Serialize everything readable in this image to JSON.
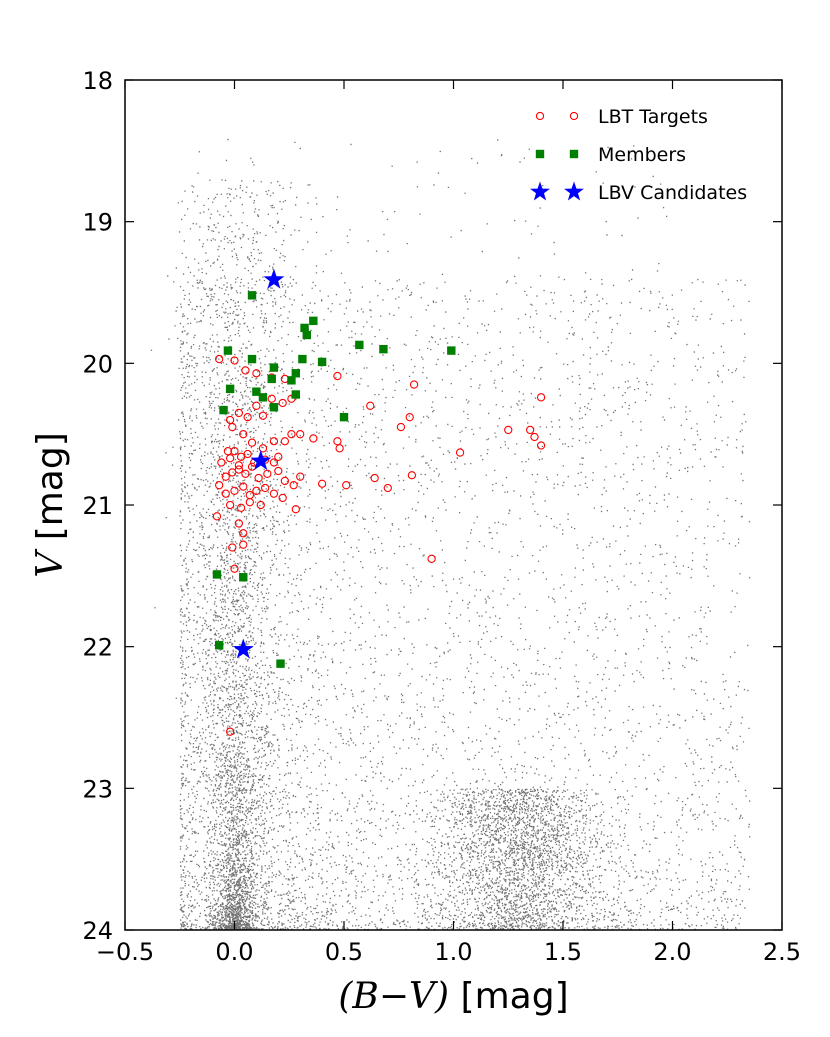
{
  "chart_data": {
    "type": "scatter",
    "xlabel": {
      "prefix": "(B−V)",
      "suffix": " [mag]"
    },
    "ylabel": {
      "prefix": "V",
      "suffix": " [mag]"
    },
    "xlim": [
      -0.5,
      2.5
    ],
    "ylim": [
      24,
      18
    ],
    "y_inverted": true,
    "x_ticks": [
      "−0.5",
      "0.0",
      "0.5",
      "1.0",
      "1.5",
      "2.0",
      "2.5"
    ],
    "x_tick_values": [
      -0.5,
      0.0,
      0.5,
      1.0,
      1.5,
      2.0,
      2.5
    ],
    "y_ticks": [
      "18",
      "19",
      "20",
      "21",
      "22",
      "23",
      "24"
    ],
    "y_tick_values": [
      18,
      19,
      20,
      21,
      22,
      23,
      24
    ],
    "grid": false,
    "legend": {
      "position": "top-right"
    },
    "series": [
      {
        "name": "LBT Targets",
        "marker": "open-circle",
        "color": "#ff0000",
        "points": [
          [
            -0.07,
            19.97
          ],
          [
            0.0,
            19.98
          ],
          [
            0.05,
            20.05
          ],
          [
            0.1,
            20.07
          ],
          [
            0.17,
            20.1
          ],
          [
            0.23,
            20.11
          ],
          [
            0.47,
            20.09
          ],
          [
            0.82,
            20.15
          ],
          [
            -0.05,
            20.33
          ],
          [
            -0.02,
            20.4
          ],
          [
            0.02,
            20.35
          ],
          [
            0.06,
            20.38
          ],
          [
            0.1,
            20.3
          ],
          [
            0.13,
            20.37
          ],
          [
            0.17,
            20.25
          ],
          [
            0.22,
            20.28
          ],
          [
            0.26,
            20.25
          ],
          [
            0.62,
            20.3
          ],
          [
            0.8,
            20.38
          ],
          [
            0.76,
            20.45
          ],
          [
            1.37,
            20.52
          ],
          [
            1.25,
            20.47
          ],
          [
            1.35,
            20.47
          ],
          [
            1.4,
            20.58
          ],
          [
            1.4,
            20.24
          ],
          [
            1.03,
            20.63
          ],
          [
            -0.01,
            20.45
          ],
          [
            0.04,
            20.5
          ],
          [
            0.08,
            20.56
          ],
          [
            0.13,
            20.6
          ],
          [
            0.18,
            20.55
          ],
          [
            0.23,
            20.55
          ],
          [
            0.26,
            20.5
          ],
          [
            0.3,
            20.5
          ],
          [
            0.36,
            20.53
          ],
          [
            0.47,
            20.55
          ],
          [
            0.48,
            20.6
          ],
          [
            -0.06,
            20.7
          ],
          [
            -0.02,
            20.67
          ],
          [
            0.0,
            20.62
          ],
          [
            0.03,
            20.66
          ],
          [
            0.06,
            20.64
          ],
          [
            0.09,
            20.7
          ],
          [
            0.14,
            20.68
          ],
          [
            0.18,
            20.7
          ],
          [
            0.2,
            20.66
          ],
          [
            -0.04,
            20.8
          ],
          [
            -0.01,
            20.77
          ],
          [
            0.02,
            20.75
          ],
          [
            0.05,
            20.78
          ],
          [
            0.08,
            20.73
          ],
          [
            0.11,
            20.81
          ],
          [
            0.15,
            20.78
          ],
          [
            0.2,
            20.76
          ],
          [
            0.23,
            20.83
          ],
          [
            0.27,
            20.86
          ],
          [
            0.3,
            20.8
          ],
          [
            0.4,
            20.85
          ],
          [
            0.51,
            20.86
          ],
          [
            0.64,
            20.81
          ],
          [
            0.7,
            20.88
          ],
          [
            0.81,
            20.79
          ],
          [
            -0.07,
            20.86
          ],
          [
            -0.04,
            20.92
          ],
          [
            0.0,
            20.9
          ],
          [
            0.04,
            20.87
          ],
          [
            0.07,
            20.93
          ],
          [
            0.1,
            20.9
          ],
          [
            0.14,
            20.88
          ],
          [
            0.18,
            20.92
          ],
          [
            0.22,
            20.95
          ],
          [
            0.28,
            21.03
          ],
          [
            -0.02,
            21.0
          ],
          [
            0.03,
            21.02
          ],
          [
            0.07,
            20.98
          ],
          [
            0.12,
            21.0
          ],
          [
            -0.08,
            21.08
          ],
          [
            0.02,
            21.13
          ],
          [
            0.04,
            21.2
          ],
          [
            -0.01,
            21.3
          ],
          [
            0.04,
            21.28
          ],
          [
            0.0,
            21.45
          ],
          [
            0.9,
            21.38
          ],
          [
            -0.02,
            22.6
          ],
          [
            0.02,
            20.72
          ],
          [
            -0.03,
            20.62
          ]
        ]
      },
      {
        "name": "Members",
        "marker": "filled-square",
        "color": "#007f00",
        "points": [
          [
            0.08,
            19.52
          ],
          [
            0.36,
            19.7
          ],
          [
            0.32,
            19.75
          ],
          [
            0.33,
            19.8
          ],
          [
            -0.03,
            19.91
          ],
          [
            0.57,
            19.87
          ],
          [
            0.68,
            19.9
          ],
          [
            0.99,
            19.91
          ],
          [
            0.08,
            19.97
          ],
          [
            0.31,
            19.97
          ],
          [
            0.4,
            19.99
          ],
          [
            0.18,
            20.03
          ],
          [
            0.28,
            20.07
          ],
          [
            0.26,
            20.12
          ],
          [
            0.17,
            20.11
          ],
          [
            -0.02,
            20.18
          ],
          [
            0.1,
            20.2
          ],
          [
            0.13,
            20.24
          ],
          [
            0.28,
            20.22
          ],
          [
            0.18,
            20.31
          ],
          [
            -0.05,
            20.33
          ],
          [
            0.5,
            20.38
          ],
          [
            -0.08,
            21.49
          ],
          [
            0.04,
            21.51
          ],
          [
            -0.07,
            21.99
          ],
          [
            0.21,
            22.12
          ]
        ]
      },
      {
        "name": "LBV Candidates",
        "marker": "star",
        "color": "#0000ff",
        "points": [
          [
            0.18,
            19.41
          ],
          [
            0.12,
            20.69
          ],
          [
            0.04,
            22.02
          ]
        ]
      }
    ]
  }
}
